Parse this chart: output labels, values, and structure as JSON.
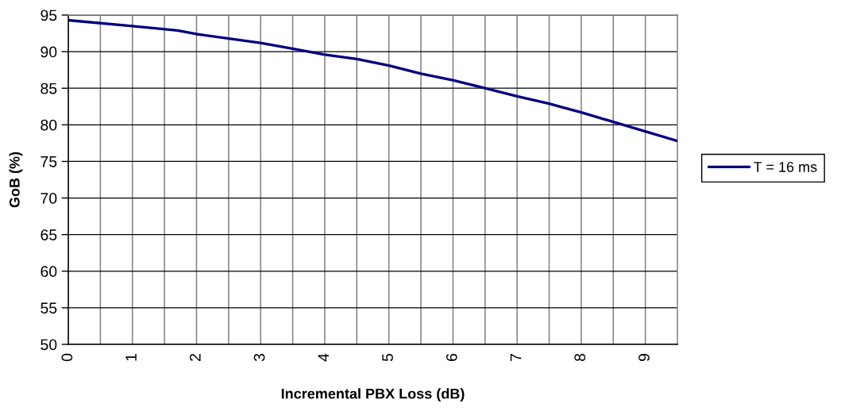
{
  "chart_data": {
    "type": "line",
    "xlabel": "Incremental PBX Loss (dB)",
    "ylabel": "GoB (%)",
    "xlim": [
      0,
      9.5
    ],
    "xticks": [
      0,
      {
        "value": 0.5,
        "label": null
      },
      1,
      {
        "value": 1.5,
        "label": null
      },
      2,
      {
        "value": 2.5,
        "label": null
      },
      3,
      {
        "value": 3.5,
        "label": null
      },
      4,
      {
        "value": 4.5,
        "label": null
      },
      5,
      {
        "value": 5.5,
        "label": null
      },
      6,
      {
        "value": 6.5,
        "label": null
      },
      7,
      {
        "value": 7.5,
        "label": null
      },
      8,
      {
        "value": 8.5,
        "label": null
      },
      9
    ],
    "ylim": [
      50,
      95
    ],
    "yticks": [
      50,
      55,
      60,
      65,
      70,
      75,
      80,
      85,
      90,
      95
    ],
    "grid": true,
    "legend": "right",
    "marker": "none",
    "line_style": "solid",
    "x": [
      0,
      1,
      1.7,
      2,
      3,
      3.5,
      4,
      4.5,
      5,
      5.5,
      6,
      6.5,
      7,
      7.5,
      7.7,
      8,
      8.5,
      9,
      9.5
    ],
    "series": [
      {
        "name": "T = 16 ms",
        "color": "#000080",
        "values": [
          94.3,
          93.5,
          92.9,
          92.4,
          91.2,
          90.4,
          89.6,
          89.0,
          88.1,
          87.0,
          86.1,
          85.0,
          83.9,
          82.9,
          82.4,
          81.7,
          80.4,
          79.1,
          77.8
        ]
      }
    ]
  }
}
